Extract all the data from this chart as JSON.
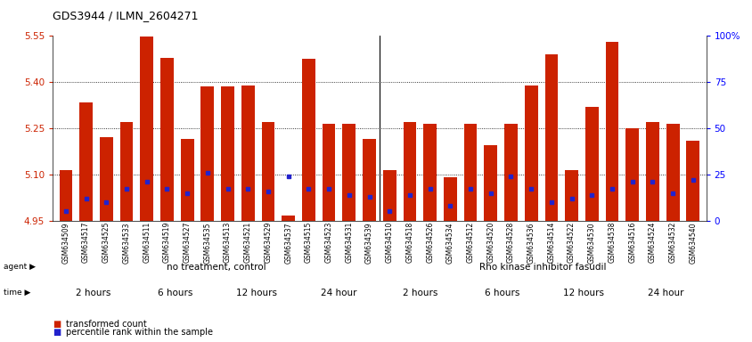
{
  "title": "GDS3944 / ILMN_2604271",
  "samples": [
    "GSM634509",
    "GSM634517",
    "GSM634525",
    "GSM634533",
    "GSM634511",
    "GSM634519",
    "GSM634527",
    "GSM634535",
    "GSM634513",
    "GSM634521",
    "GSM634529",
    "GSM634537",
    "GSM634515",
    "GSM634523",
    "GSM634531",
    "GSM634539",
    "GSM634510",
    "GSM634518",
    "GSM634526",
    "GSM634534",
    "GSM634512",
    "GSM634520",
    "GSM634528",
    "GSM634536",
    "GSM634514",
    "GSM634522",
    "GSM634530",
    "GSM634538",
    "GSM634516",
    "GSM634524",
    "GSM634532",
    "GSM634540"
  ],
  "transformed_counts": [
    5.115,
    5.335,
    5.22,
    5.27,
    5.548,
    5.48,
    5.215,
    5.385,
    5.385,
    5.39,
    5.27,
    4.965,
    5.475,
    5.265,
    5.265,
    5.215,
    5.115,
    5.27,
    5.265,
    5.09,
    5.265,
    5.195,
    5.265,
    5.39,
    5.49,
    5.115,
    5.32,
    5.53,
    5.25,
    5.27,
    5.265,
    5.21
  ],
  "percentile_pct": [
    5,
    12,
    10,
    17,
    21,
    17,
    15,
    26,
    17,
    17,
    16,
    24,
    17,
    17,
    14,
    13,
    5,
    14,
    17,
    8,
    17,
    15,
    24,
    17,
    10,
    12,
    14,
    17,
    21,
    21,
    15,
    22
  ],
  "y_min": 4.95,
  "y_max": 5.55,
  "yticks_left": [
    4.95,
    5.1,
    5.25,
    5.4,
    5.55
  ],
  "yticks_right": [
    0,
    25,
    50,
    75,
    100
  ],
  "bar_color": "#CC2200",
  "percentile_color": "#2222CC",
  "agent_labels": [
    "no treatment, control",
    "Rho kinase inhibitor fasudil"
  ],
  "agent_color": "#90EE90",
  "time_colors": [
    "#FFFFFF",
    "#EE88EE",
    "#EE88EE",
    "#EE88EE",
    "#FFFFFF",
    "#EE88EE",
    "#EE88EE",
    "#EE88EE"
  ],
  "time_labels": [
    "2 hours",
    "6 hours",
    "12 hours",
    "24 hour",
    "2 hours",
    "6 hours",
    "12 hours",
    "24 hour"
  ],
  "legend_labels": [
    "transformed count",
    "percentile rank within the sample"
  ],
  "legend_colors": [
    "#CC2200",
    "#2222CC"
  ],
  "title_fontsize": 9
}
